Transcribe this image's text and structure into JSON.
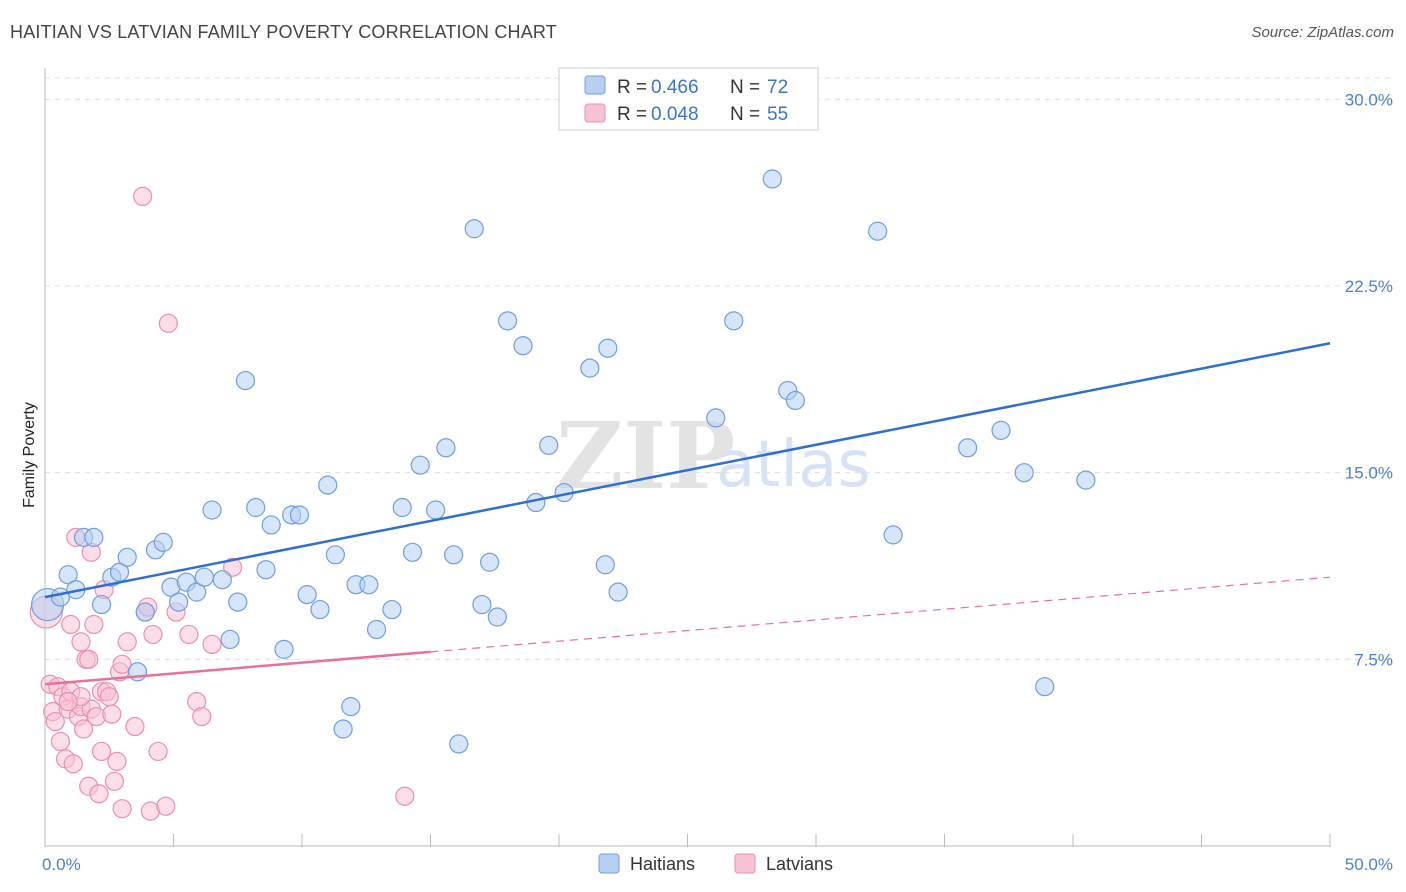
{
  "title": "HAITIAN VS LATVIAN FAMILY POVERTY CORRELATION CHART",
  "source": "Source: ZipAtlas.com",
  "watermark": {
    "zip": "ZIP",
    "atlas": "atlas"
  },
  "colors": {
    "haitians_fill": "#b7d0f2",
    "haitians_stroke": "#6f9ee0",
    "haitians_line": "#2f6fcf",
    "latvians_fill": "#f7c2d3",
    "latvians_stroke": "#ec8fae",
    "latvians_line": "#e8709a",
    "grid": "#dddddd",
    "axis_text": "#4a7fd6"
  },
  "legend": {
    "rows": [
      {
        "r_label": "R =",
        "r_value": "0.466",
        "n_label": "N =",
        "n_value": "72"
      },
      {
        "r_label": "R =",
        "r_value": "0.048",
        "n_label": "N =",
        "n_value": "55"
      }
    ]
  },
  "chart_data": {
    "type": "scatter",
    "title": "HAITIAN VS LATVIAN FAMILY POVERTY CORRELATION CHART",
    "xlabel": "",
    "ylabel": "Family Poverty",
    "xlim": [
      0,
      50
    ],
    "ylim": [
      0,
      31.5
    ],
    "x_tick_labels": [
      "0.0%",
      "50.0%"
    ],
    "y_ticks": [
      7.5,
      15.0,
      22.5,
      30.0
    ],
    "y_tick_labels": [
      "7.5%",
      "15.0%",
      "22.5%",
      "30.0%"
    ],
    "grid": true,
    "legend_position": "bottom",
    "series": [
      {
        "name": "Haitians",
        "trend": {
          "x": [
            0,
            50
          ],
          "y": [
            10.0,
            20.2
          ],
          "style": "solid"
        },
        "points": [
          {
            "x": 0.1,
            "y": 9.7,
            "big": true
          },
          {
            "x": 0.6,
            "y": 10.0
          },
          {
            "x": 0.9,
            "y": 10.9
          },
          {
            "x": 1.2,
            "y": 10.3
          },
          {
            "x": 1.5,
            "y": 12.4
          },
          {
            "x": 1.9,
            "y": 12.4
          },
          {
            "x": 2.2,
            "y": 9.7
          },
          {
            "x": 2.6,
            "y": 10.8
          },
          {
            "x": 2.9,
            "y": 11.0
          },
          {
            "x": 3.2,
            "y": 11.6
          },
          {
            "x": 3.6,
            "y": 7.0
          },
          {
            "x": 3.9,
            "y": 9.4
          },
          {
            "x": 4.3,
            "y": 11.9
          },
          {
            "x": 4.6,
            "y": 12.2
          },
          {
            "x": 4.9,
            "y": 10.4
          },
          {
            "x": 5.2,
            "y": 9.8
          },
          {
            "x": 5.5,
            "y": 10.6
          },
          {
            "x": 5.9,
            "y": 10.2
          },
          {
            "x": 6.2,
            "y": 10.8
          },
          {
            "x": 6.5,
            "y": 13.5
          },
          {
            "x": 6.9,
            "y": 10.7
          },
          {
            "x": 7.2,
            "y": 8.3
          },
          {
            "x": 7.5,
            "y": 9.8
          },
          {
            "x": 7.8,
            "y": 18.7
          },
          {
            "x": 8.2,
            "y": 13.6
          },
          {
            "x": 8.6,
            "y": 11.1
          },
          {
            "x": 8.8,
            "y": 12.9
          },
          {
            "x": 9.3,
            "y": 7.9
          },
          {
            "x": 9.6,
            "y": 13.3
          },
          {
            "x": 9.9,
            "y": 13.3
          },
          {
            "x": 10.2,
            "y": 10.1
          },
          {
            "x": 10.7,
            "y": 9.5
          },
          {
            "x": 11.0,
            "y": 14.5
          },
          {
            "x": 11.3,
            "y": 11.7
          },
          {
            "x": 11.6,
            "y": 4.7
          },
          {
            "x": 11.9,
            "y": 5.6
          },
          {
            "x": 12.1,
            "y": 10.5
          },
          {
            "x": 12.6,
            "y": 10.5
          },
          {
            "x": 12.9,
            "y": 8.7
          },
          {
            "x": 13.5,
            "y": 9.5
          },
          {
            "x": 13.9,
            "y": 13.6
          },
          {
            "x": 14.3,
            "y": 11.8
          },
          {
            "x": 14.6,
            "y": 15.3
          },
          {
            "x": 15.2,
            "y": 13.5
          },
          {
            "x": 15.6,
            "y": 16.0
          },
          {
            "x": 15.9,
            "y": 11.7
          },
          {
            "x": 16.1,
            "y": 4.1
          },
          {
            "x": 16.7,
            "y": 24.8
          },
          {
            "x": 17.0,
            "y": 9.7
          },
          {
            "x": 17.3,
            "y": 11.4
          },
          {
            "x": 17.6,
            "y": 9.2
          },
          {
            "x": 18.0,
            "y": 21.1
          },
          {
            "x": 18.6,
            "y": 20.1
          },
          {
            "x": 19.1,
            "y": 13.8
          },
          {
            "x": 19.6,
            "y": 16.1
          },
          {
            "x": 20.2,
            "y": 14.2
          },
          {
            "x": 21.2,
            "y": 19.2
          },
          {
            "x": 21.8,
            "y": 11.3
          },
          {
            "x": 21.9,
            "y": 20.0
          },
          {
            "x": 22.3,
            "y": 10.2
          },
          {
            "x": 26.1,
            "y": 17.2
          },
          {
            "x": 26.8,
            "y": 21.1
          },
          {
            "x": 28.3,
            "y": 26.8
          },
          {
            "x": 28.9,
            "y": 18.3
          },
          {
            "x": 29.2,
            "y": 17.9
          },
          {
            "x": 32.4,
            "y": 24.7
          },
          {
            "x": 33.0,
            "y": 12.5
          },
          {
            "x": 35.9,
            "y": 16.0
          },
          {
            "x": 37.2,
            "y": 16.7
          },
          {
            "x": 38.1,
            "y": 15.0
          },
          {
            "x": 38.9,
            "y": 6.4
          },
          {
            "x": 40.5,
            "y": 14.7
          }
        ]
      },
      {
        "name": "Latvians",
        "trend": {
          "x": [
            0,
            15
          ],
          "y": [
            6.5,
            7.8
          ],
          "style": "solid",
          "extension": {
            "x": [
              15,
              50
            ],
            "y": [
              7.8,
              10.8
            ],
            "style": "dashed"
          }
        },
        "points": [
          {
            "x": 0.05,
            "y": 9.4,
            "big": true
          },
          {
            "x": 0.2,
            "y": 6.5
          },
          {
            "x": 0.3,
            "y": 5.4
          },
          {
            "x": 0.4,
            "y": 5.0
          },
          {
            "x": 0.5,
            "y": 6.4
          },
          {
            "x": 0.6,
            "y": 4.2
          },
          {
            "x": 0.7,
            "y": 6.0
          },
          {
            "x": 0.8,
            "y": 3.5
          },
          {
            "x": 0.9,
            "y": 5.5
          },
          {
            "x": 1.0,
            "y": 6.2
          },
          {
            "x": 1.0,
            "y": 8.9
          },
          {
            "x": 1.1,
            "y": 3.3
          },
          {
            "x": 1.2,
            "y": 12.4
          },
          {
            "x": 1.3,
            "y": 5.2
          },
          {
            "x": 1.4,
            "y": 5.6
          },
          {
            "x": 1.4,
            "y": 8.2
          },
          {
            "x": 1.5,
            "y": 4.7
          },
          {
            "x": 1.6,
            "y": 7.5
          },
          {
            "x": 1.7,
            "y": 7.5
          },
          {
            "x": 1.7,
            "y": 2.4
          },
          {
            "x": 1.8,
            "y": 11.8
          },
          {
            "x": 1.8,
            "y": 5.5
          },
          {
            "x": 1.9,
            "y": 8.9
          },
          {
            "x": 2.0,
            "y": 5.2
          },
          {
            "x": 2.1,
            "y": 2.1
          },
          {
            "x": 2.2,
            "y": 6.2
          },
          {
            "x": 2.2,
            "y": 3.8
          },
          {
            "x": 2.3,
            "y": 10.3
          },
          {
            "x": 2.4,
            "y": 6.2
          },
          {
            "x": 2.6,
            "y": 5.3
          },
          {
            "x": 2.7,
            "y": 2.6
          },
          {
            "x": 2.8,
            "y": 3.4
          },
          {
            "x": 2.9,
            "y": 7.0
          },
          {
            "x": 3.0,
            "y": 1.5
          },
          {
            "x": 3.0,
            "y": 7.3
          },
          {
            "x": 3.2,
            "y": 8.2
          },
          {
            "x": 3.5,
            "y": 4.8
          },
          {
            "x": 3.8,
            "y": 26.1
          },
          {
            "x": 3.9,
            "y": 9.4
          },
          {
            "x": 4.0,
            "y": 9.6
          },
          {
            "x": 4.2,
            "y": 8.5
          },
          {
            "x": 4.1,
            "y": 1.4
          },
          {
            "x": 4.4,
            "y": 3.8
          },
          {
            "x": 4.8,
            "y": 21.0
          },
          {
            "x": 4.7,
            "y": 1.6
          },
          {
            "x": 5.1,
            "y": 9.4
          },
          {
            "x": 5.6,
            "y": 8.5
          },
          {
            "x": 5.9,
            "y": 5.8
          },
          {
            "x": 6.1,
            "y": 5.2
          },
          {
            "x": 6.5,
            "y": 8.1
          },
          {
            "x": 7.3,
            "y": 11.2
          },
          {
            "x": 14.0,
            "y": 2.0
          },
          {
            "x": 1.4,
            "y": 6.0
          },
          {
            "x": 0.9,
            "y": 5.8
          },
          {
            "x": 2.5,
            "y": 6.0
          }
        ]
      }
    ]
  },
  "bottom_legend": {
    "items": [
      "Haitians",
      "Latvians"
    ]
  }
}
